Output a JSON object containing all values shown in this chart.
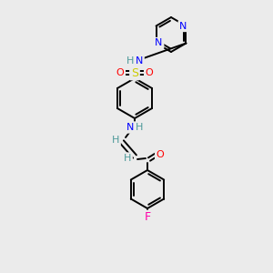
{
  "bg_color": "#ebebeb",
  "bond_color": "#000000",
  "atom_colors": {
    "N": "#0000ff",
    "O": "#ff0000",
    "S": "#cccc00",
    "F": "#ff00aa",
    "H": "#4d9999",
    "C": "#000000"
  },
  "figsize": [
    3.0,
    3.0
  ],
  "dpi": 100
}
